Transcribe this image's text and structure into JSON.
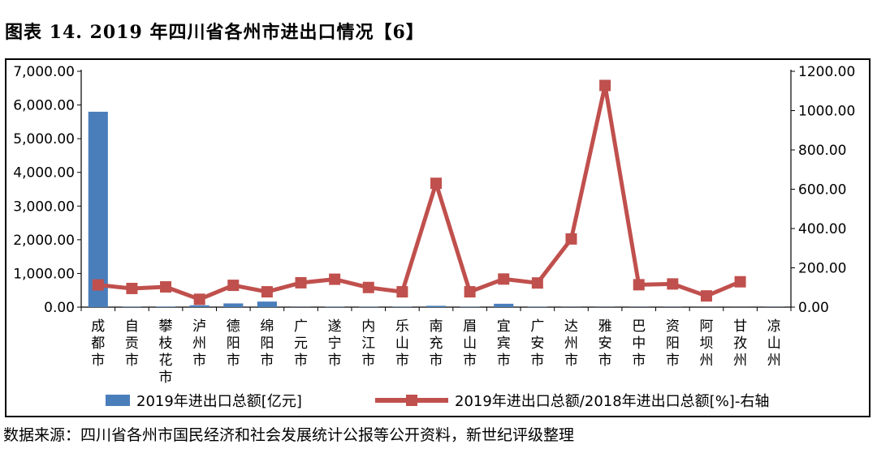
{
  "figure": {
    "title": "图表 14. 2019 年四川省各州市进出口情况【6】",
    "source": "数据来源：四川省各州市国民经济和社会发展统计公报等公开资料，新世纪评级整理"
  },
  "colors": {
    "bar": "#4a7ebb",
    "line": "#c0504d"
  },
  "chart_data": {
    "type": "bar",
    "categories": [
      "成都市",
      "自贡市",
      "攀枝花市",
      "泸州市",
      "德阳市",
      "绵阳市",
      "广元市",
      "遂宁市",
      "内江市",
      "乐山市",
      "南充市",
      "眉山市",
      "宜宾市",
      "广安市",
      "达州市",
      "雅安市",
      "巴中市",
      "资阳市",
      "阿坝州",
      "甘孜州",
      "凉山州"
    ],
    "y_left": {
      "range": [
        0,
        7000
      ],
      "ticks": [
        "0.00",
        "1,000.00",
        "2,000.00",
        "3,000.00",
        "4,000.00",
        "5,000.00",
        "6,000.00",
        "7,000.00"
      ]
    },
    "y_right": {
      "range": [
        0,
        1200
      ],
      "ticks": [
        "0.00",
        "200.00",
        "400.00",
        "600.00",
        "800.00",
        "1000.00",
        "1200.00"
      ]
    },
    "series": [
      {
        "name": "2019年进出口总额[亿元]",
        "type": "bar",
        "axis": "left",
        "values": [
          5800,
          10,
          15,
          55,
          110,
          165,
          5,
          10,
          10,
          10,
          40,
          10,
          100,
          10,
          5,
          5,
          5,
          5,
          2,
          2,
          5
        ]
      },
      {
        "name": "2019年进出口总额/2018年进出口总额[%]-右轴",
        "type": "line",
        "axis": "right",
        "values": [
          113,
          95,
          103,
          40,
          111,
          78,
          124,
          142,
          100,
          78,
          630,
          78,
          143,
          123,
          347,
          1128,
          114,
          118,
          57,
          129,
          null
        ]
      }
    ],
    "grid": false,
    "legend_position": "bottom"
  }
}
